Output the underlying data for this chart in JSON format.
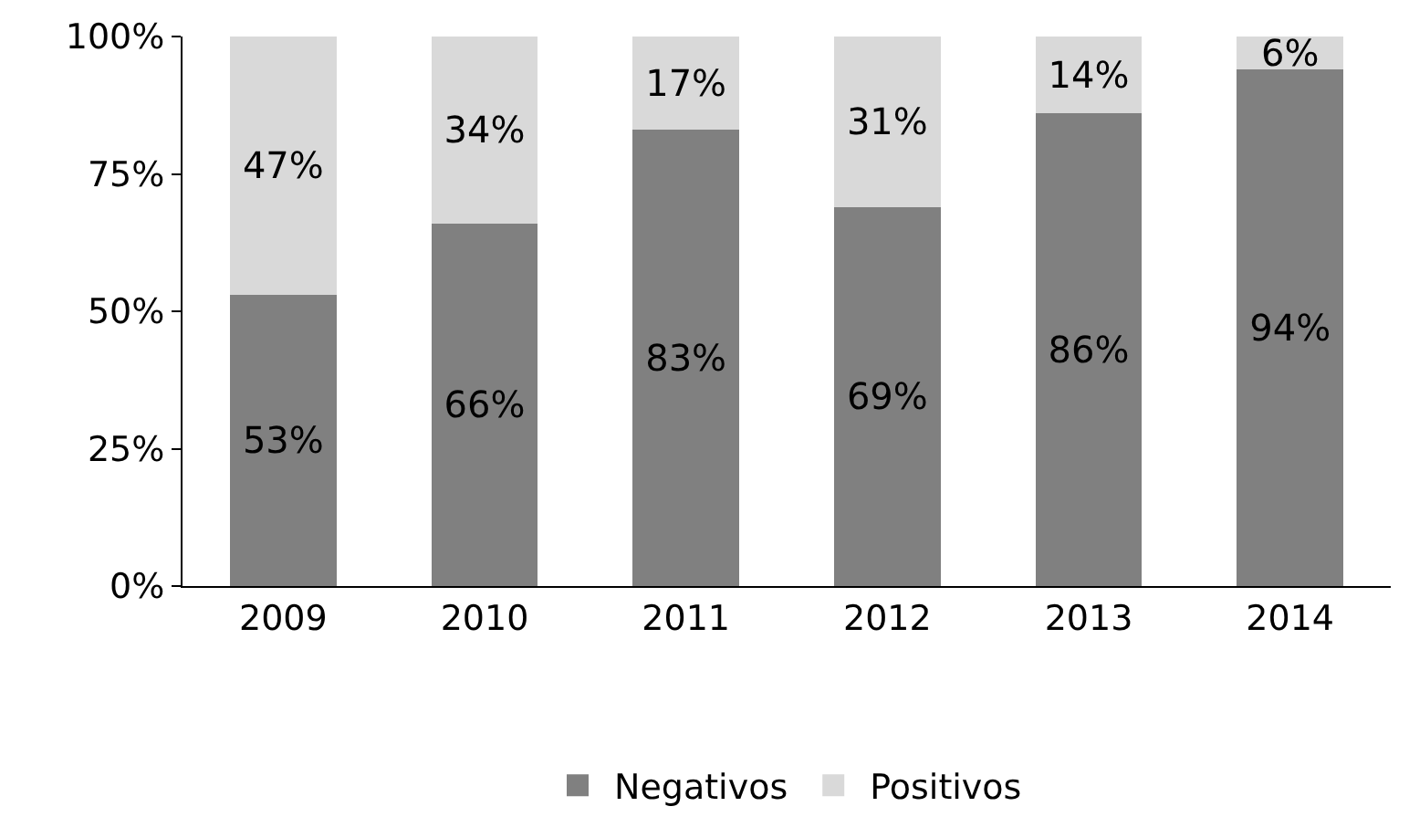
{
  "chart_data": {
    "type": "bar",
    "stacked": true,
    "categories": [
      "2009",
      "2010",
      "2011",
      "2012",
      "2013",
      "2014"
    ],
    "series": [
      {
        "name": "Negativos",
        "color": "#808080",
        "values": [
          53,
          66,
          83,
          69,
          86,
          94
        ],
        "value_labels": [
          "53%",
          "66%",
          "83%",
          "69%",
          "86%",
          "94%"
        ]
      },
      {
        "name": "Positivos",
        "color": "#d9d9d9",
        "values": [
          47,
          34,
          17,
          31,
          14,
          6
        ],
        "value_labels": [
          "47%",
          "34%",
          "17%",
          "31%",
          "14%",
          "6%"
        ]
      }
    ],
    "ylim": [
      0,
      100
    ],
    "yticks": [
      {
        "value": 0,
        "label": "0%"
      },
      {
        "value": 25,
        "label": "25%"
      },
      {
        "value": 50,
        "label": "50%"
      },
      {
        "value": 75,
        "label": "75%"
      },
      {
        "value": 100,
        "label": "100%"
      }
    ],
    "legend": "bottom"
  }
}
